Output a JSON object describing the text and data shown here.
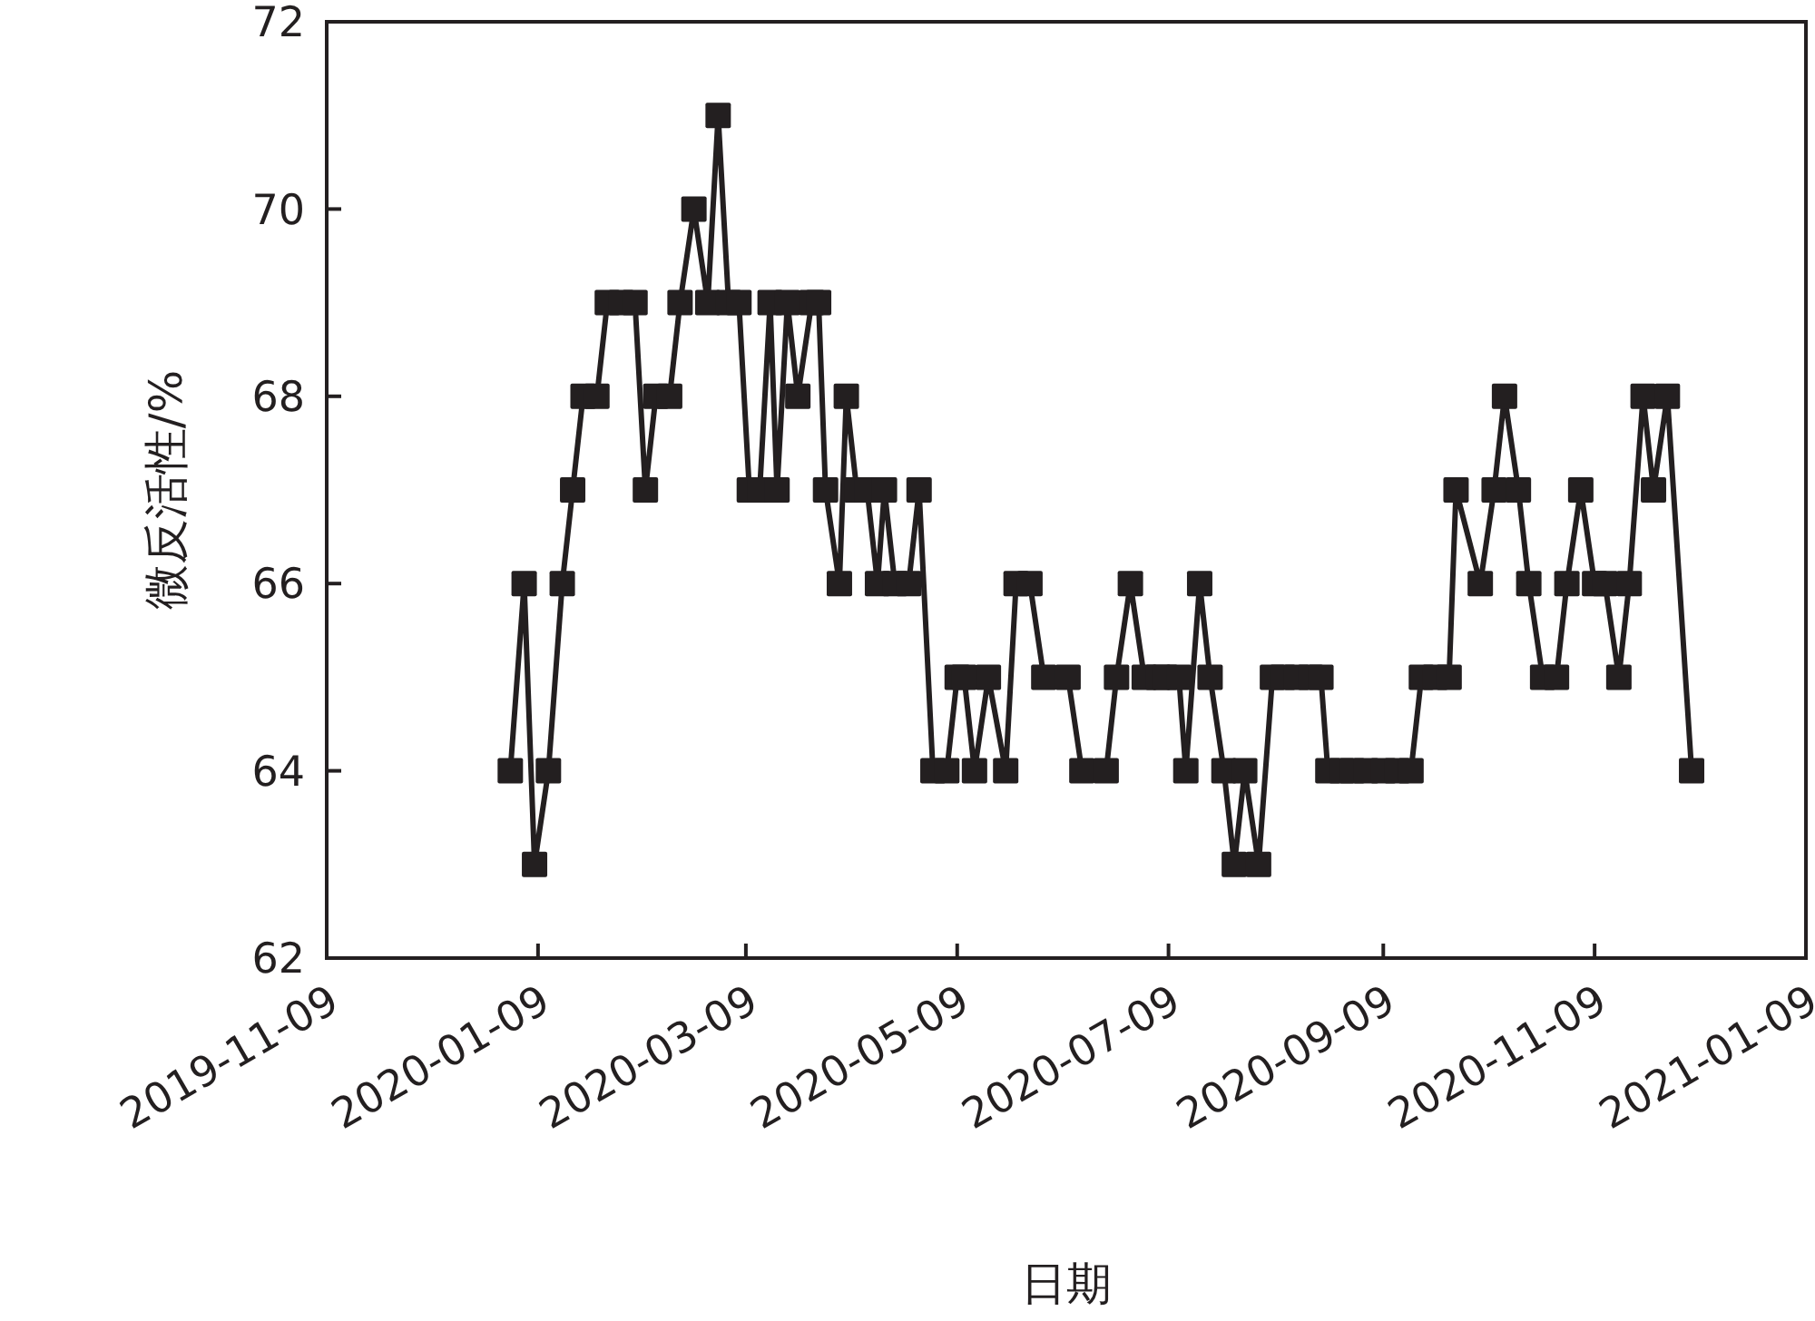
{
  "chart_data": {
    "type": "line",
    "xlabel": "日期",
    "ylabel": "微反活性/%",
    "x": [
      "2020-01-01",
      "2020-01-05",
      "2020-01-08",
      "2020-01-12",
      "2020-01-16",
      "2020-01-19",
      "2020-01-22",
      "2020-01-26",
      "2020-01-29",
      "2020-02-02",
      "2020-02-06",
      "2020-02-09",
      "2020-02-12",
      "2020-02-16",
      "2020-02-19",
      "2020-02-23",
      "2020-02-27",
      "2020-03-01",
      "2020-03-04",
      "2020-03-07",
      "2020-03-10",
      "2020-03-13",
      "2020-03-16",
      "2020-03-18",
      "2020-03-21",
      "2020-03-24",
      "2020-03-28",
      "2020-03-30",
      "2020-04-01",
      "2020-04-05",
      "2020-04-07",
      "2020-04-10",
      "2020-04-13",
      "2020-04-16",
      "2020-04-18",
      "2020-04-21",
      "2020-04-25",
      "2020-04-28",
      "2020-05-02",
      "2020-05-06",
      "2020-05-09",
      "2020-05-11",
      "2020-05-14",
      "2020-05-18",
      "2020-05-23",
      "2020-05-26",
      "2020-05-30",
      "2020-06-03",
      "2020-06-10",
      "2020-06-14",
      "2020-06-21",
      "2020-06-24",
      "2020-06-28",
      "2020-07-02",
      "2020-07-06",
      "2020-07-08",
      "2020-07-12",
      "2020-07-14",
      "2020-07-18",
      "2020-07-21",
      "2020-07-25",
      "2020-07-28",
      "2020-07-31",
      "2020-08-04",
      "2020-08-08",
      "2020-08-11",
      "2020-08-15",
      "2020-08-19",
      "2020-08-22",
      "2020-08-24",
      "2020-08-28",
      "2020-08-31",
      "2020-09-04",
      "2020-09-09",
      "2020-09-13",
      "2020-09-17",
      "2020-09-20",
      "2020-09-24",
      "2020-09-28",
      "2020-09-30",
      "2020-10-07",
      "2020-10-11",
      "2020-10-14",
      "2020-10-18",
      "2020-10-21",
      "2020-10-25",
      "2020-10-29",
      "2020-11-01",
      "2020-11-05",
      "2020-11-09",
      "2020-11-12",
      "2020-11-16",
      "2020-11-19",
      "2020-11-23",
      "2020-11-26",
      "2020-11-30",
      "2020-12-07"
    ],
    "series": [
      {
        "color": "#231f20",
        "values": [
          64,
          66,
          63,
          64,
          66,
          67,
          68,
          68,
          69,
          69,
          69,
          67,
          68,
          68,
          69,
          70,
          69,
          71,
          69,
          69,
          67,
          67,
          69,
          67,
          69,
          68,
          69,
          69,
          67,
          66,
          68,
          67,
          67,
          66,
          67,
          66,
          66,
          67,
          64,
          64,
          65,
          65,
          64,
          65,
          64,
          66,
          66,
          65,
          65,
          64,
          64,
          65,
          66,
          65,
          65,
          65,
          65,
          64,
          66,
          65,
          64,
          63,
          64,
          63,
          65,
          65,
          65,
          65,
          65,
          64,
          64,
          64,
          64,
          64,
          64,
          64,
          65,
          65,
          65,
          67,
          66,
          67,
          68,
          67,
          66,
          65,
          65,
          66,
          67,
          66,
          66,
          65,
          66,
          68,
          67,
          68,
          64
        ]
      }
    ],
    "xlim": [
      "2019-11-09",
      "2021-01-09"
    ],
    "xticks": [
      {
        "value": "2019-11-09",
        "label": "2019-11-09"
      },
      {
        "value": "2020-01-09",
        "label": "2020-01-09"
      },
      {
        "value": "2020-03-09",
        "label": "2020-03-09"
      },
      {
        "value": "2020-05-09",
        "label": "2020-05-09"
      },
      {
        "value": "2020-07-09",
        "label": "2020-07-09"
      },
      {
        "value": "2020-09-09",
        "label": "2020-09-09"
      },
      {
        "value": "2020-11-09",
        "label": "2020-11-09"
      },
      {
        "value": "2021-01-09",
        "label": "2021-01-09"
      }
    ],
    "ylim": [
      62,
      72
    ],
    "yticks": [
      62,
      64,
      66,
      68,
      70,
      72
    ],
    "grid": false,
    "marker": "square",
    "line_style": "solid"
  }
}
